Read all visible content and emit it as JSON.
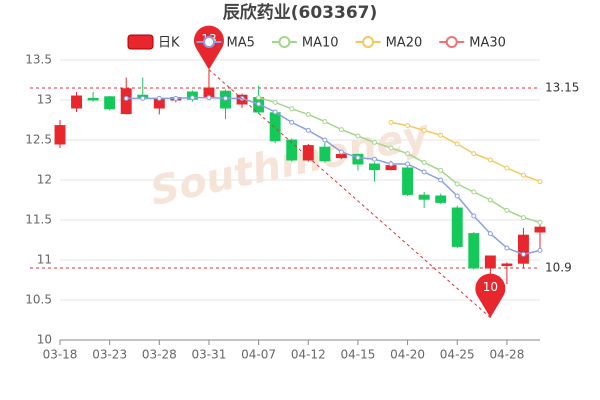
{
  "chart_data": {
    "type": "candlestick",
    "title": "辰欣药业(603367)",
    "watermark": "Southmoney",
    "categories": [
      "03-18",
      null,
      null,
      "03-23",
      null,
      null,
      "03-28",
      null,
      null,
      "03-31",
      null,
      null,
      "04-07",
      null,
      null,
      "04-12",
      null,
      null,
      "04-15",
      null,
      null,
      "04-20",
      null,
      null,
      "04-25",
      null,
      null,
      "04-28",
      null,
      null
    ],
    "series": [
      {
        "name": "日K",
        "up_color": "#e8262d",
        "down_color": "#14c95a",
        "open": [
          12.45,
          12.9,
          13.02,
          13.04,
          12.83,
          13.06,
          12.9,
          13.0,
          13.1,
          13.03,
          13.11,
          12.95,
          13.03,
          12.84,
          12.5,
          12.25,
          12.41,
          12.28,
          12.32,
          12.2,
          12.13,
          12.15,
          11.81,
          11.8,
          11.65,
          11.33,
          10.9,
          10.93,
          10.96,
          11.35
        ],
        "high": [
          12.75,
          13.1,
          13.1,
          13.05,
          13.28,
          13.28,
          13.05,
          13.05,
          13.12,
          13.38,
          13.13,
          13.08,
          13.18,
          12.87,
          12.52,
          12.45,
          12.47,
          12.35,
          12.33,
          12.22,
          12.24,
          12.2,
          11.85,
          11.83,
          11.68,
          11.35,
          11.05,
          10.97,
          11.4,
          11.48
        ],
        "low": [
          12.4,
          12.85,
          12.98,
          12.87,
          12.82,
          13.0,
          12.82,
          12.97,
          12.98,
          13.0,
          12.76,
          12.9,
          12.83,
          12.46,
          12.23,
          12.23,
          12.22,
          12.26,
          12.12,
          11.98,
          12.12,
          11.8,
          11.65,
          11.7,
          11.15,
          10.88,
          10.28,
          10.7,
          10.9,
          11.1
        ],
        "close": [
          12.68,
          13.05,
          13.0,
          12.89,
          13.14,
          13.03,
          13.02,
          13.03,
          13.01,
          13.15,
          12.9,
          13.06,
          12.85,
          12.49,
          12.25,
          12.43,
          12.24,
          12.32,
          12.2,
          12.13,
          12.18,
          11.82,
          11.76,
          11.72,
          11.17,
          10.9,
          11.05,
          10.95,
          11.31,
          11.41
        ]
      },
      {
        "name": "MA5",
        "color": "#8a9fe0",
        "values": [
          null,
          null,
          null,
          null,
          13.02,
          13.02,
          13.02,
          13.02,
          13.03,
          13.03,
          13.02,
          13.02,
          12.95,
          12.85,
          12.72,
          12.62,
          12.5,
          12.35,
          12.28,
          12.26,
          12.2,
          12.2,
          12.1,
          12.0,
          11.8,
          11.55,
          11.33,
          11.15,
          11.07,
          11.12
        ]
      },
      {
        "name": "MA10",
        "color": "#a5d58a",
        "values": [
          null,
          null,
          null,
          null,
          null,
          null,
          null,
          null,
          null,
          null,
          null,
          null,
          13.03,
          12.97,
          12.89,
          12.82,
          12.73,
          12.63,
          12.55,
          12.47,
          12.4,
          12.33,
          12.22,
          12.12,
          11.95,
          11.85,
          11.75,
          11.62,
          11.53,
          11.47
        ]
      },
      {
        "name": "MA20",
        "color": "#f2c85e",
        "values": [
          null,
          null,
          null,
          null,
          null,
          null,
          null,
          null,
          null,
          null,
          null,
          null,
          null,
          null,
          null,
          null,
          null,
          null,
          null,
          null,
          12.72,
          12.68,
          12.62,
          12.56,
          12.45,
          12.33,
          12.25,
          12.15,
          12.06,
          11.98
        ]
      },
      {
        "name": "MA30",
        "color": "#f07272"
      }
    ],
    "ylim": [
      10,
      13.5
    ],
    "yticks": [
      10,
      10.5,
      11,
      11.5,
      12,
      12.5,
      13,
      13.5
    ],
    "grid": true,
    "ref_lines": [
      13.15,
      10.9
    ],
    "pin_color": "#e8262d",
    "max_label": "13",
    "min_label": "10"
  }
}
